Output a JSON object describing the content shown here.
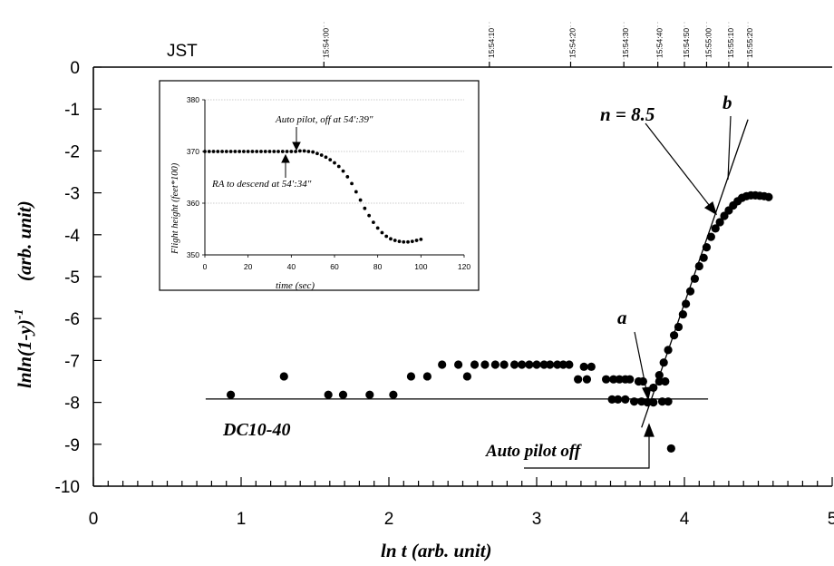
{
  "chart_data": {
    "type": "scatter",
    "xlabel": "ln t  (arb. unit)",
    "ylabel": "lnln(1-y)",
    "ylabel_sup": "-1",
    "ylabel_unit": "(arb. unit)",
    "xlim": [
      0,
      5
    ],
    "ylim": [
      -10,
      0
    ],
    "x_ticks": [
      0,
      1,
      2,
      3,
      4,
      5
    ],
    "y_ticks": [
      0,
      -1,
      -2,
      -3,
      -4,
      -5,
      -6,
      -7,
      -8,
      -9,
      -10
    ],
    "time_axis": {
      "label": "JST",
      "ticks": [
        {
          "label": "15:54:00",
          "x": 1.56
        },
        {
          "label": "15:54:10",
          "x": 2.68
        },
        {
          "label": "15:54:20",
          "x": 3.23
        },
        {
          "label": "15:54:30",
          "x": 3.59
        },
        {
          "label": "15:54:40",
          "x": 3.82
        },
        {
          "label": "15:54:50",
          "x": 4.0
        },
        {
          "label": "15:55:00",
          "x": 4.15
        },
        {
          "label": "15:55:10",
          "x": 4.3
        },
        {
          "label": "15:55:20",
          "x": 4.43
        }
      ]
    },
    "series": [
      {
        "points": [
          [
            0.93,
            -7.82
          ],
          [
            1.29,
            -7.38
          ],
          [
            1.59,
            -7.82
          ],
          [
            1.69,
            -7.82
          ],
          [
            1.87,
            -7.82
          ],
          [
            2.03,
            -7.82
          ],
          [
            2.15,
            -7.38
          ],
          [
            2.26,
            -7.38
          ],
          [
            2.36,
            -7.1
          ],
          [
            2.47,
            -7.1
          ],
          [
            2.53,
            -7.38
          ],
          [
            2.58,
            -7.1
          ],
          [
            2.65,
            -7.1
          ],
          [
            2.72,
            -7.1
          ],
          [
            2.78,
            -7.1
          ],
          [
            2.85,
            -7.1
          ],
          [
            2.9,
            -7.1
          ],
          [
            2.95,
            -7.1
          ],
          [
            3.0,
            -7.1
          ],
          [
            3.05,
            -7.1
          ],
          [
            3.09,
            -7.1
          ],
          [
            3.14,
            -7.1
          ],
          [
            3.18,
            -7.1
          ],
          [
            3.22,
            -7.1
          ],
          [
            3.28,
            -7.45
          ],
          [
            3.32,
            -7.15
          ],
          [
            3.34,
            -7.45
          ],
          [
            3.37,
            -7.15
          ],
          [
            3.47,
            -7.45
          ],
          [
            3.52,
            -7.45
          ],
          [
            3.56,
            -7.45
          ],
          [
            3.6,
            -7.45
          ],
          [
            3.63,
            -7.45
          ],
          [
            3.51,
            -7.93
          ],
          [
            3.55,
            -7.93
          ],
          [
            3.6,
            -7.93
          ],
          [
            3.66,
            -7.98
          ],
          [
            3.71,
            -7.98
          ],
          [
            3.75,
            -8.0
          ],
          [
            3.79,
            -8.0
          ],
          [
            3.85,
            -7.98
          ],
          [
            3.89,
            -7.98
          ],
          [
            3.69,
            -7.5
          ],
          [
            3.72,
            -7.5
          ],
          [
            3.83,
            -7.5
          ],
          [
            3.87,
            -7.5
          ],
          [
            3.91,
            -9.1
          ],
          [
            3.79,
            -7.65
          ],
          [
            3.83,
            -7.35
          ],
          [
            3.86,
            -7.05
          ],
          [
            3.89,
            -6.75
          ],
          [
            3.93,
            -6.4
          ],
          [
            3.96,
            -6.2
          ],
          [
            3.99,
            -5.9
          ],
          [
            4.01,
            -5.65
          ],
          [
            4.04,
            -5.35
          ],
          [
            4.07,
            -5.05
          ],
          [
            4.1,
            -4.75
          ],
          [
            4.13,
            -4.55
          ],
          [
            4.15,
            -4.3
          ],
          [
            4.18,
            -4.05
          ],
          [
            4.21,
            -3.85
          ],
          [
            4.24,
            -3.7
          ],
          [
            4.27,
            -3.55
          ],
          [
            4.3,
            -3.42
          ],
          [
            4.33,
            -3.3
          ],
          [
            4.36,
            -3.2
          ],
          [
            4.39,
            -3.12
          ],
          [
            4.42,
            -3.08
          ],
          [
            4.45,
            -3.06
          ],
          [
            4.48,
            -3.06
          ],
          [
            4.51,
            -3.07
          ],
          [
            4.54,
            -3.08
          ],
          [
            4.57,
            -3.1
          ]
        ]
      }
    ],
    "fit_lines": [
      {
        "from": [
          0.76,
          -7.92
        ],
        "to": [
          4.16,
          -7.92
        ]
      },
      {
        "from": [
          3.71,
          -8.6
        ],
        "to": [
          4.43,
          -1.25
        ]
      }
    ],
    "annotations": {
      "n_label": "n = 8.5",
      "a_label": "a",
      "b_label": "b",
      "series_label": "DC10-40",
      "event_label": "Auto pilot off"
    },
    "inset": {
      "type": "scatter",
      "xlabel": "time (sec)",
      "ylabel": "Flight height (feet*100)",
      "xlim": [
        0,
        120
      ],
      "ylim": [
        350,
        380
      ],
      "x_ticks": [
        0,
        20,
        40,
        60,
        80,
        100,
        120
      ],
      "y_ticks": [
        350,
        360,
        370,
        380
      ],
      "annotation_top": "Auto pilot, off at 54':39\"",
      "annotation_bottom": "RA to descend at 54':34\"",
      "points": [
        [
          0,
          370
        ],
        [
          2,
          370
        ],
        [
          4,
          370
        ],
        [
          6,
          370
        ],
        [
          8,
          370
        ],
        [
          10,
          370
        ],
        [
          12,
          370
        ],
        [
          14,
          370
        ],
        [
          16,
          370
        ],
        [
          18,
          370
        ],
        [
          20,
          370
        ],
        [
          22,
          370
        ],
        [
          24,
          370
        ],
        [
          26,
          370
        ],
        [
          28,
          370
        ],
        [
          30,
          370
        ],
        [
          32,
          370
        ],
        [
          34,
          370
        ],
        [
          36,
          370
        ],
        [
          38,
          370
        ],
        [
          40,
          370
        ],
        [
          42,
          370
        ],
        [
          44,
          370.1
        ],
        [
          46,
          370.1
        ],
        [
          48,
          370
        ],
        [
          50,
          369.9
        ],
        [
          52,
          369.6
        ],
        [
          54,
          369.3
        ],
        [
          56,
          368.9
        ],
        [
          58,
          368.4
        ],
        [
          60,
          367.8
        ],
        [
          62,
          367.1
        ],
        [
          64,
          366.2
        ],
        [
          66,
          365.1
        ],
        [
          68,
          363.8
        ],
        [
          70,
          362.2
        ],
        [
          72,
          360.6
        ],
        [
          74,
          359
        ],
        [
          76,
          357.6
        ],
        [
          78,
          356.3
        ],
        [
          80,
          355.2
        ],
        [
          82,
          354.3
        ],
        [
          84,
          353.6
        ],
        [
          86,
          353.1
        ],
        [
          88,
          352.8
        ],
        [
          90,
          352.6
        ],
        [
          92,
          352.5
        ],
        [
          94,
          352.5
        ],
        [
          96,
          352.6
        ],
        [
          98,
          352.8
        ],
        [
          100,
          353
        ]
      ]
    }
  }
}
